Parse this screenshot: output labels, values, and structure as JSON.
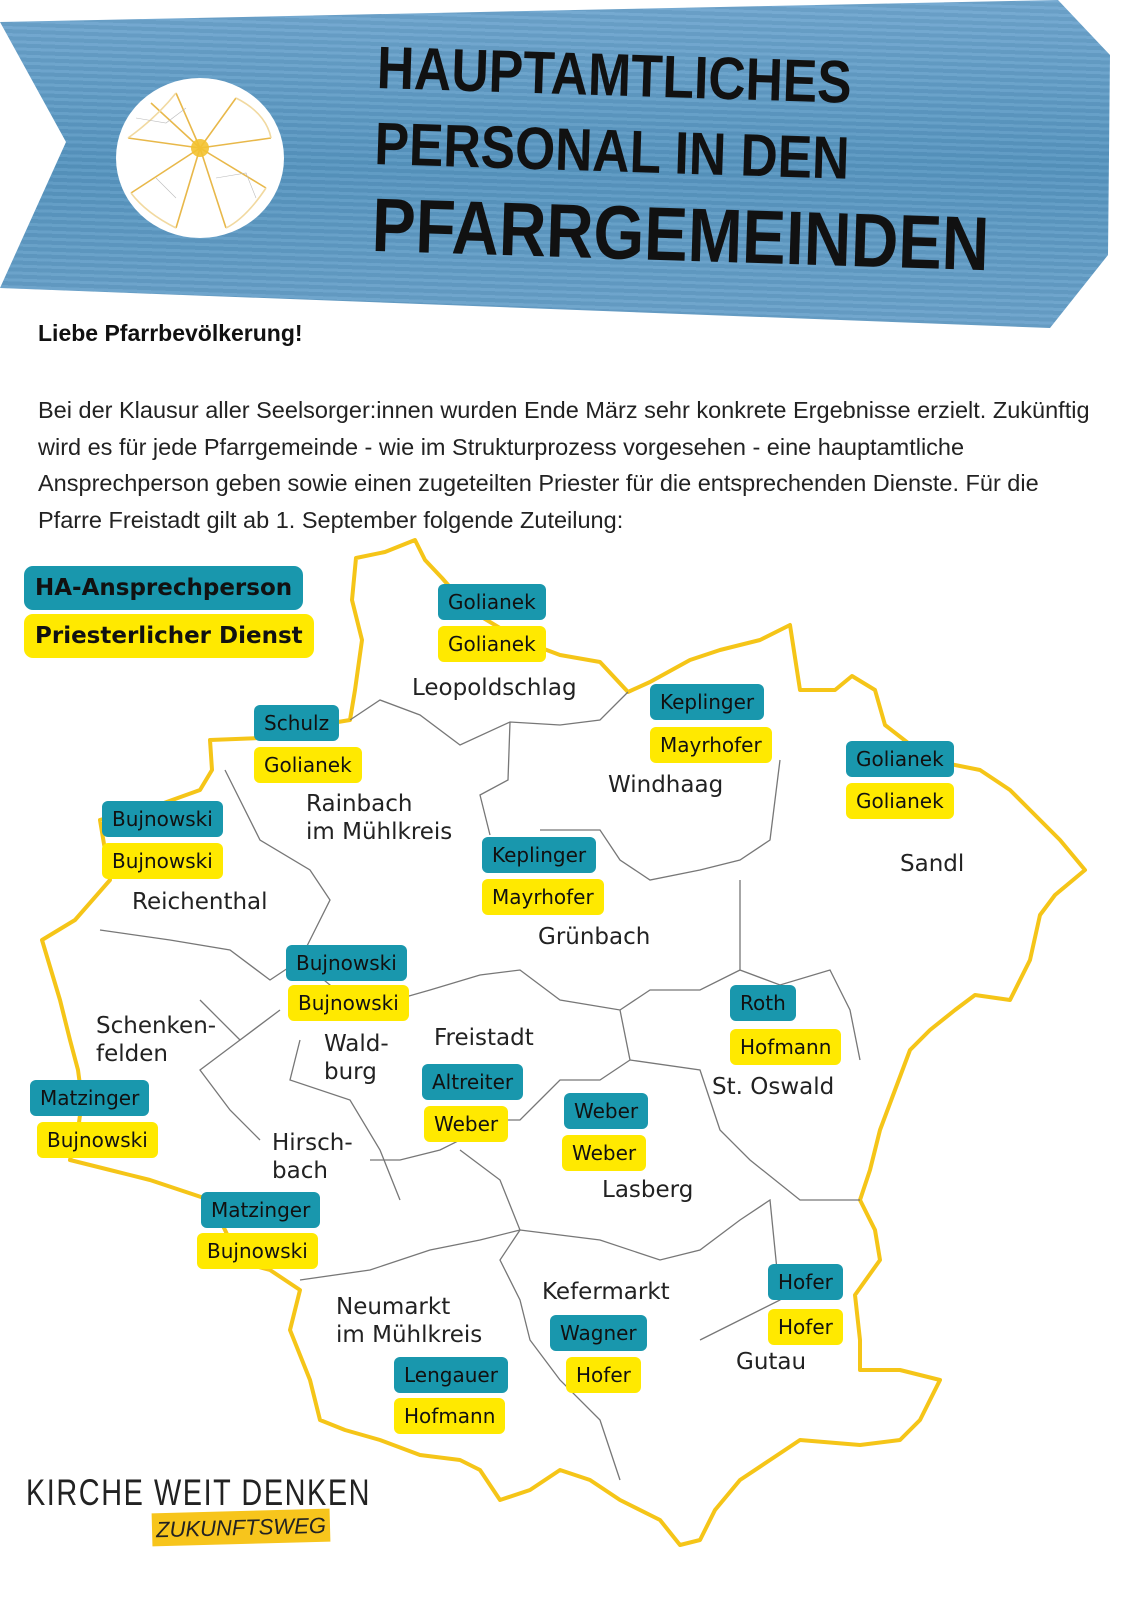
{
  "header": {
    "title_lines": [
      "HAUPTAMTLICHES",
      "PERSONAL IN DEN",
      "PFARRGEMEINDEN"
    ],
    "banner_color": "#5b9ac4"
  },
  "greeting": "Liebe Pfarrbevölkerung!",
  "intro": "Bei der Klausur aller Seelsorger:innen wurden Ende März sehr konkrete Ergebnisse erzielt. Zukünftig wird es für jede Pfarrgemeinde - wie im Strukturprozess vorgesehen - eine hauptamtliche Ansprechperson geben sowie einen zugeteilten Priester für die entsprechenden Dienste. Für die Pfarre Freistadt gilt ab 1. September folgende Zuteilung:",
  "legend": {
    "contact": {
      "label": "HA-Ansprechperson",
      "color": "#1997ad"
    },
    "priest": {
      "label": "Priesterlicher Dienst",
      "color": "#ffe900"
    }
  },
  "map": {
    "border_color": "#f5c518",
    "parishes": [
      {
        "name": "Leopoldschlag",
        "contact": "Golianek",
        "priest": "Golianek"
      },
      {
        "name": "Windhaag",
        "contact": "Keplinger",
        "priest": "Mayrhofer"
      },
      {
        "name": "Sandl",
        "contact": "Golianek",
        "priest": "Golianek"
      },
      {
        "name": "Rainbach\nim Mühlkreis",
        "contact": "Schulz",
        "priest": "Golianek"
      },
      {
        "name": "Reichenthal",
        "contact": "Bujnowski",
        "priest": "Bujnowski"
      },
      {
        "name": "Grünbach",
        "contact": "Keplinger",
        "priest": "Mayrhofer"
      },
      {
        "name": "Wald-\nburg",
        "contact": "Bujnowski",
        "priest": "Bujnowski"
      },
      {
        "name": "Freistadt",
        "contact": "Altreiter",
        "priest": "Weber"
      },
      {
        "name": "Schenken-\nfelden",
        "contact": "Matzinger",
        "priest": "Bujnowski"
      },
      {
        "name": "Hirsch-\nbach",
        "contact": "Matzinger",
        "priest": "Bujnowski"
      },
      {
        "name": "St. Oswald",
        "contact": "Roth",
        "priest": "Hofmann"
      },
      {
        "name": "Lasberg",
        "contact": "Weber",
        "priest": "Weber"
      },
      {
        "name": "Kefermarkt",
        "contact": "Wagner",
        "priest": "Hofer"
      },
      {
        "name": "Neumarkt\nim Mühlkreis",
        "contact": "Lengauer",
        "priest": "Hofmann"
      },
      {
        "name": "Gutau",
        "contact": "Hofer",
        "priest": "Hofer"
      }
    ]
  },
  "footer_logo": {
    "line1": "KIRCHE WEIT DENKEN",
    "line2": "ZUKUNFTSWEG"
  }
}
